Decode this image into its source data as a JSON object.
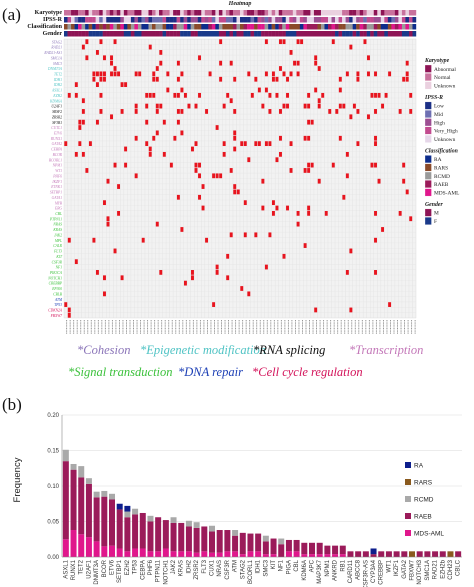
{
  "panel_a": {
    "label": "(a)",
    "title": "Heatmap",
    "annot_rows": [
      "Karyotype",
      "IPSS-R",
      "Classification",
      "Gender"
    ],
    "legend": [
      {
        "title": "Karyotype",
        "items": [
          {
            "label": "Abnormal",
            "color": "#8e1455"
          },
          {
            "label": "Normal",
            "color": "#c9729d"
          },
          {
            "label": "Unknown",
            "color": "#ead0df"
          }
        ]
      },
      {
        "title": "IPSS-R",
        "items": [
          {
            "label": "Low",
            "color": "#1b2f86"
          },
          {
            "label": "Mid",
            "color": "#6d6fb2"
          },
          {
            "label": "High",
            "color": "#9c4e92"
          },
          {
            "label": "Very_High",
            "color": "#c24b8f"
          },
          {
            "label": "Unknown",
            "color": "#e6d7e9"
          }
        ]
      },
      {
        "title": "Classification",
        "items": [
          {
            "label": "RA",
            "color": "#0d2d8c"
          },
          {
            "label": "RARS",
            "color": "#8a4a2a"
          },
          {
            "label": "RCMD",
            "color": "#9a9a9a"
          },
          {
            "label": "RAEB",
            "color": "#9b1b5a"
          },
          {
            "label": "MDS-AML",
            "color": "#e0178c"
          }
        ]
      },
      {
        "title": "Gender",
        "items": [
          {
            "label": "M",
            "color": "#8e1455"
          },
          {
            "label": "F",
            "color": "#1a3a8a"
          }
        ]
      }
    ],
    "gene_groups": [
      {
        "color": "#8a74b8",
        "genes": [
          "STAG2",
          "RAD21",
          "RAD21-AS1",
          "SMC1A",
          "SMC3"
        ]
      },
      {
        "color": "#4fc3c4",
        "genes": [
          "DNMT3A",
          "TET2",
          "IDH1",
          "IDH2",
          "ASXL1",
          "EZH2",
          "KDM6A"
        ]
      },
      {
        "color": "#111111",
        "genes": [
          "U2AF1",
          "SRSF2",
          "ZRSR2",
          "SF3B1"
        ]
      },
      {
        "color": "#c377b8",
        "genes": [
          "CUTL1",
          "ETV6",
          "RUNX1",
          "GATA2",
          "CEBPA",
          "BCOR",
          "BCORL1",
          "NPM1",
          "WT1",
          "PHF6",
          "IKZF1",
          "ETNK1",
          "SETBP1",
          "GATA1",
          "MYB",
          "ERG"
        ]
      },
      {
        "color": "#3cc13c",
        "genes": [
          "CBL",
          "PTPN11",
          "NRAS",
          "KRAS",
          "JAK2",
          "MPL",
          "CALR",
          "FLT3",
          "KIT",
          "CSF3R",
          "NF1",
          "PIK3CA",
          "NOTCH1",
          "CREBBP",
          "EP300",
          "CBLB"
        ]
      },
      {
        "color": "#1c3fb5",
        "genes": [
          "ATM",
          "TP53"
        ]
      },
      {
        "color": "#d3135a",
        "genes": [
          "CDKN2A",
          "FBXW7"
        ]
      }
    ],
    "categories": [
      {
        "label": "*Cohesion",
        "color": "#8a74b8"
      },
      {
        "label": "*Epigenetic modification",
        "color": "#4fc3c4"
      },
      {
        "label": "*RNA splicing",
        "color": "#111111"
      },
      {
        "label": "*Transcription",
        "color": "#c377b8"
      },
      {
        "label": "*Signal transduction",
        "color": "#3cc13c"
      },
      {
        "label": "*DNA repair",
        "color": "#1c3fb5"
      },
      {
        "label": "*Cell cycle regulation",
        "color": "#d3135a"
      }
    ],
    "mutation_color": "#e8141e"
  },
  "chart_data": {
    "type": "bar",
    "stacked": true,
    "title": "",
    "xlabel": "",
    "ylabel": "Frequency",
    "ylim": [
      0,
      0.2
    ],
    "yticks": [
      "0.00",
      "0.05",
      "0.10",
      "0.15",
      "0.20"
    ],
    "grid": true,
    "legend_position": "right",
    "categories": [
      "ASXL1",
      "RUNX1",
      "TET2",
      "U2AF1",
      "DNMT3A",
      "BCOR",
      "ETV6",
      "SETBP1",
      "EZH2",
      "TP53",
      "CEBPA",
      "PHF6",
      "PTPN11",
      "NOTCH1",
      "JAK2",
      "KRAS",
      "IDH2",
      "ZRSR2",
      "FLT3",
      "CUX1",
      "NRAS",
      "CSF3R",
      "ATM",
      "STAG2",
      "BCORL1",
      "IDH1",
      "SMC3",
      "KIT",
      "NF1",
      "PIGA",
      "CBL",
      "KDM6A",
      "APC",
      "MAP3K7",
      "NPM1",
      "ANKRD",
      "RB1",
      "CARD11",
      "ABCC8",
      "CSF3R-AS",
      "CYP3A4",
      "CREBBP",
      "WT1",
      "IKZF1",
      "GATA2",
      "FBXW7",
      "NOTCH3",
      "SMC1A",
      "RAD21",
      "EZH2b",
      "CDH23",
      "CBLC"
    ],
    "series": [
      {
        "name": "RA",
        "color": "#0d1e8c",
        "values": [
          0,
          0,
          0,
          0,
          0,
          0,
          0,
          0.008,
          0.008,
          0,
          0,
          0,
          0,
          0,
          0,
          0,
          0,
          0,
          0,
          0,
          0,
          0,
          0,
          0,
          0,
          0,
          0,
          0,
          0,
          0,
          0,
          0,
          0,
          0,
          0,
          0,
          0,
          0,
          0,
          0,
          0.008,
          0,
          0,
          0,
          0,
          0,
          0,
          0,
          0,
          0,
          0,
          0
        ]
      },
      {
        "name": "RARS",
        "color": "#8a5a1e",
        "values": [
          0,
          0,
          0,
          0,
          0,
          0,
          0,
          0,
          0,
          0,
          0,
          0,
          0,
          0,
          0,
          0,
          0,
          0,
          0,
          0,
          0,
          0,
          0,
          0,
          0,
          0,
          0,
          0,
          0,
          0,
          0,
          0,
          0,
          0,
          0,
          0,
          0,
          0,
          0,
          0,
          0,
          0,
          0,
          0,
          0,
          0.008,
          0,
          0,
          0,
          0,
          0.008,
          0
        ]
      },
      {
        "name": "RCMD",
        "color": "#a9a9a9",
        "values": [
          0.016,
          0.008,
          0.016,
          0.008,
          0.008,
          0.008,
          0.008,
          0,
          0.008,
          0.008,
          0,
          0.008,
          0,
          0,
          0.008,
          0,
          0.008,
          0.008,
          0,
          0.008,
          0,
          0,
          0.008,
          0,
          0,
          0,
          0.008,
          0,
          0.008,
          0,
          0,
          0,
          0,
          0,
          0,
          0,
          0,
          0,
          0,
          0,
          0,
          0,
          0,
          0,
          0,
          0,
          0,
          0,
          0,
          0,
          0,
          0
        ]
      },
      {
        "name": "RAEB",
        "color": "#9b1b5a",
        "values": [
          0.11,
          0.085,
          0.08,
          0.075,
          0.062,
          0.07,
          0.065,
          0.055,
          0.048,
          0.048,
          0.05,
          0.042,
          0.048,
          0.04,
          0.04,
          0.04,
          0.035,
          0.035,
          0.035,
          0.03,
          0.032,
          0.03,
          0.022,
          0.03,
          0.025,
          0.025,
          0.018,
          0.022,
          0.018,
          0.016,
          0.016,
          0.016,
          0.016,
          0.016,
          0.012,
          0.012,
          0.012,
          0.008,
          0.008,
          0.008,
          0.004,
          0.008,
          0.008,
          0.008,
          0.008,
          0,
          0.008,
          0.008,
          0.008,
          0.008,
          0,
          0.008
        ]
      },
      {
        "name": "MDS-AML",
        "color": "#e0178c",
        "values": [
          0.025,
          0.038,
          0.032,
          0.028,
          0.022,
          0.015,
          0.016,
          0.012,
          0.008,
          0.012,
          0.012,
          0.008,
          0.008,
          0.012,
          0.008,
          0.008,
          0.008,
          0.006,
          0.008,
          0.006,
          0.006,
          0.008,
          0.008,
          0.004,
          0.008,
          0.008,
          0.004,
          0.004,
          0,
          0.008,
          0.008,
          0.004,
          0.004,
          0.004,
          0.004,
          0.004,
          0.004,
          0,
          0,
          0,
          0,
          0,
          0,
          0,
          0,
          0,
          0,
          0,
          0,
          0,
          0,
          0
        ]
      }
    ]
  },
  "panel_b": {
    "label": "(b)"
  }
}
